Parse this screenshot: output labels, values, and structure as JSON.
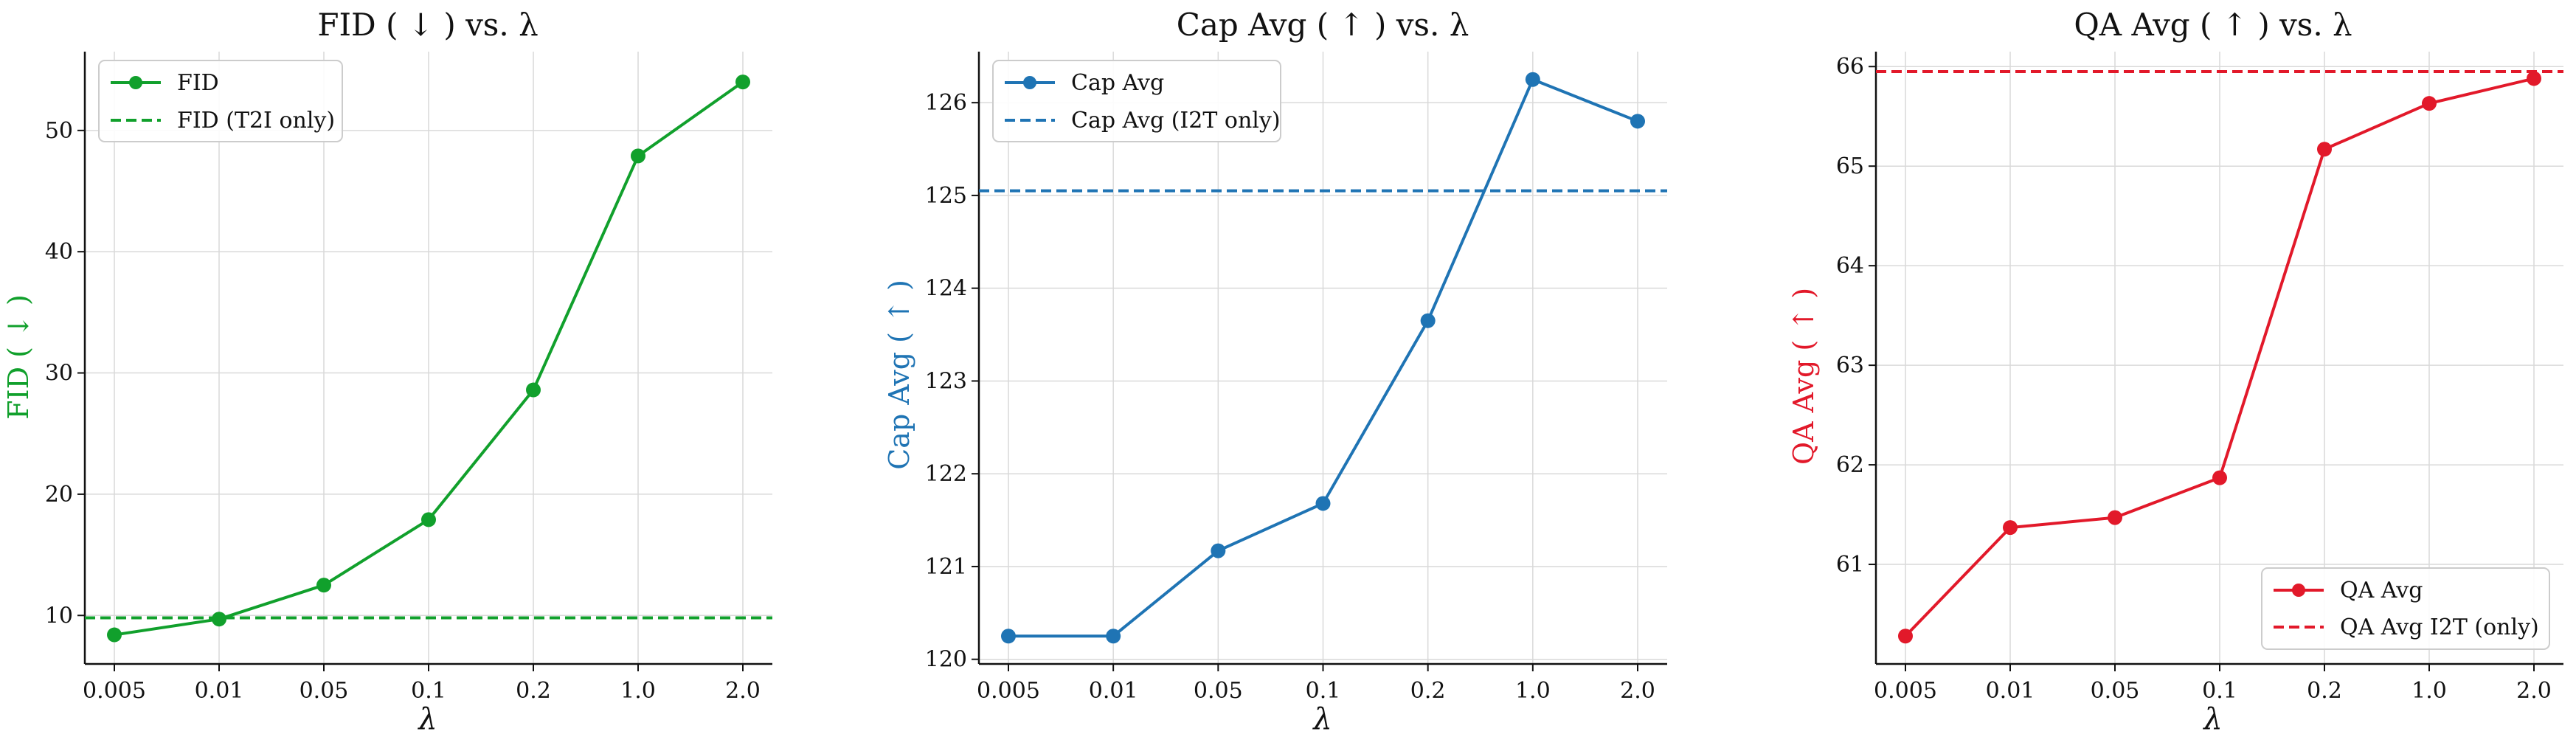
{
  "chart_data": [
    {
      "type": "line",
      "title": "FID ( ↓ ) vs. λ",
      "xlabel": "λ",
      "ylabel": "FID ( ↓ )",
      "color": "#11a02c",
      "categories": [
        "0.005",
        "0.01",
        "0.05",
        "0.1",
        "0.2",
        "1.0",
        "2.0"
      ],
      "ylim": [
        6.0,
        56.5
      ],
      "yticks": [
        10,
        20,
        30,
        40,
        50
      ],
      "grid": true,
      "legend_position": "upper-left",
      "series": [
        {
          "name": "FID",
          "values": [
            8.4,
            9.7,
            12.5,
            17.9,
            28.6,
            47.9,
            54.0
          ]
        }
      ],
      "reference_line": {
        "name": "FID (T2I only)",
        "value": 9.8
      }
    },
    {
      "type": "line",
      "title": "Cap Avg ( ↑ ) vs. λ",
      "xlabel": "λ",
      "ylabel": "Cap Avg ( ↑ )",
      "color": "#1f74b4",
      "categories": [
        "0.005",
        "0.01",
        "0.05",
        "0.1",
        "0.2",
        "1.0",
        "2.0"
      ],
      "ylim": [
        119.95,
        126.55
      ],
      "yticks": [
        120,
        121,
        122,
        123,
        124,
        125,
        126
      ],
      "grid": true,
      "legend_position": "upper-left",
      "series": [
        {
          "name": "Cap Avg",
          "values": [
            120.25,
            120.25,
            121.17,
            121.68,
            123.65,
            126.25,
            125.8
          ]
        }
      ],
      "reference_line": {
        "name": "Cap Avg (I2T only)",
        "value": 125.05
      }
    },
    {
      "type": "line",
      "title": "QA Avg ( ↑ ) vs. λ",
      "xlabel": "λ",
      "ylabel": "QA Avg ( ↑ )",
      "color": "#e2192a",
      "categories": [
        "0.005",
        "0.01",
        "0.05",
        "0.1",
        "0.2",
        "1.0",
        "2.0"
      ],
      "ylim": [
        60.0,
        66.15
      ],
      "yticks": [
        61,
        62,
        63,
        64,
        65,
        66
      ],
      "grid": true,
      "legend_position": "lower-right",
      "series": [
        {
          "name": "QA Avg",
          "values": [
            60.28,
            61.37,
            61.47,
            61.87,
            65.17,
            65.63,
            65.88
          ]
        }
      ],
      "reference_line": {
        "name": "QA Avg I2T (only)",
        "value": 65.95
      }
    }
  ]
}
